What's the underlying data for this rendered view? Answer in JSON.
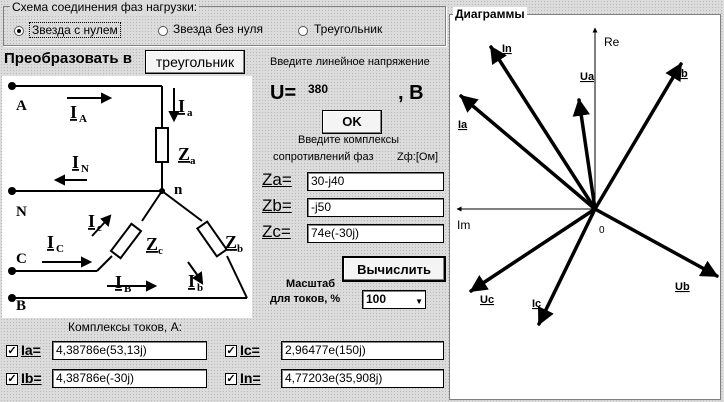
{
  "connection": {
    "title": "Схема соединения фаз нагрузки:",
    "options": [
      {
        "label": "Звезда с нулем",
        "selected": true
      },
      {
        "label": "Звезда без нуля",
        "selected": false
      },
      {
        "label": "Треугольник",
        "selected": false
      }
    ]
  },
  "convert": {
    "label": "Преобразовать в",
    "button": "треугольник"
  },
  "voltage": {
    "prompt": "Введите линейное напряжение",
    "u_label": "U=",
    "value": "380",
    "unit": ", B",
    "ok": "OK"
  },
  "impedances": {
    "prompt1": "Введите комплексы",
    "prompt2": "сопротивлений  фаз",
    "zf_label": "Zф:[Ом]",
    "za_label": "Za=",
    "za_value": "30-j40",
    "zb_label": "Zb=",
    "zb_value": "-j50",
    "zc_label": "Zc=",
    "zc_value": "74e(-30j)"
  },
  "calculate": "Вычислить",
  "scale": {
    "label1": "Масштаб",
    "label2": "для токов, %",
    "value": "100"
  },
  "circuit": {
    "A": "A",
    "N": "N",
    "C": "C",
    "B": "B",
    "n": "n",
    "IA": "I",
    "IA_sub": "A",
    "IN": "I",
    "IN_sub": "N",
    "IC": "I",
    "IC_sub": "C",
    "IB": "I",
    "IB_sub": "B",
    "Ia": "I",
    "Ia_sub": "a",
    "Ic": "I",
    "Ic_sub": "c",
    "Ib": "I",
    "Ib_sub": "b",
    "Za": "Z",
    "Za_sub": "a",
    "Zb": "Z",
    "Zb_sub": "b",
    "Zc": "Z",
    "Zc_sub": "c"
  },
  "currents": {
    "title": "Комплексы токов, А:",
    "ia_label": "Ia=",
    "ia_value": "4,38786e(53,13j)",
    "ib_label": "Ib=",
    "ib_value": "4,38786e(-30j)",
    "ic_label": "Ic=",
    "ic_value": "2,96477e(150j)",
    "in_label": "In=",
    "in_value": "4,77203e(35,908j)"
  },
  "diagram": {
    "title": "Диаграммы",
    "re": "Re",
    "im": "Im",
    "zero": "0",
    "labels": {
      "In": "In",
      "Ua": "Ua",
      "Ib": "Ib",
      "Ia": "Ia",
      "Uc": "Uc",
      "Ic": "Ic",
      "Ub": "Ub"
    }
  }
}
